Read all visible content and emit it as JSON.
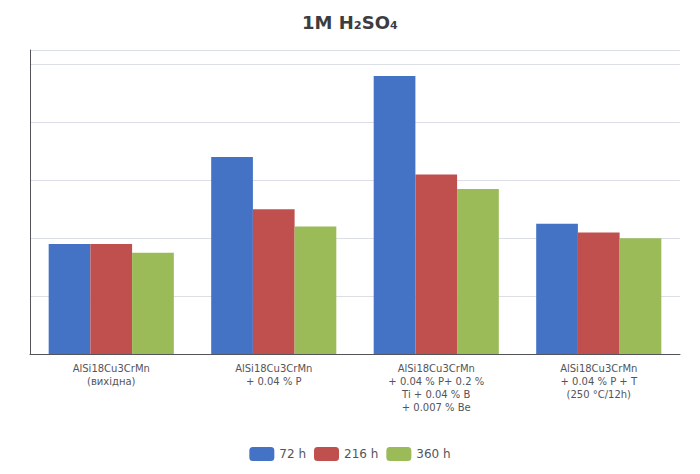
{
  "chart_data": {
    "type": "bar",
    "title": "1M H₂SO₄",
    "categories": [
      "AlSi18Cu3CrMn\n(вихідна)",
      "AlSi18Cu3CrMn\n+ 0.04 % P",
      "AlSi18Cu3CrMn\n+ 0.04 % P+ 0.2 %\nTi + 0.04 % B\n+ 0.007 % Be",
      "AlSi18Cu3CrMn\n+ 0.04 % P + T\n(250 °C/12h)"
    ],
    "series": [
      {
        "name": "72 h",
        "color": "#4472C4",
        "values": [
          0.38,
          0.68,
          0.96,
          0.45
        ]
      },
      {
        "name": "216 h",
        "color": "#C0504D",
        "values": [
          0.38,
          0.5,
          0.62,
          0.42
        ]
      },
      {
        "name": "360 h",
        "color": "#9BBB59",
        "values": [
          0.35,
          0.44,
          0.57,
          0.4
        ]
      }
    ],
    "ylim": [
      0,
      1.05
    ],
    "yticks": [
      0,
      0.2,
      0.4,
      0.6,
      0.8,
      1.0
    ],
    "grid": true,
    "legend": "bottom",
    "tick_labels": "x"
  }
}
